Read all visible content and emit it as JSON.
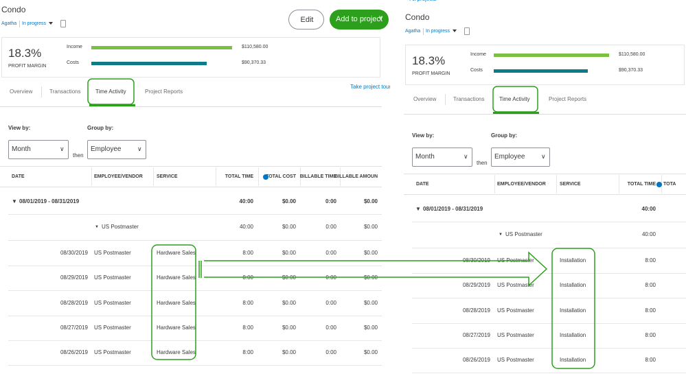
{
  "left": {
    "project": "Condo",
    "customer": "Agatha",
    "status": "In progress",
    "edit": "Edit",
    "add": "Add to project",
    "margin": "18.3%",
    "margin_label": "PROFIT MARGIN",
    "income_label": "Income",
    "income": 110580,
    "income_text": "$110,580.00",
    "costs_label": "Costs",
    "costs": 90370.33,
    "costs_text": "$90,370.33",
    "tabs": [
      "Overview",
      "Transactions",
      "Time Activity",
      "Project Reports"
    ],
    "tour": "Take project tour",
    "view_by": "View by:",
    "view_value": "Month",
    "then": "then",
    "group_by": "Group by:",
    "group_value": "Employee",
    "columns": [
      "DATE",
      "EMPLOYEE/VENDOR",
      "SERVICE",
      "TOTAL TIME",
      "TOTAL COST",
      "BILLABLE TIME",
      "BILLABLE AMOUN"
    ],
    "group_row": [
      "08/01/2019 - 08/31/2019",
      "40:00",
      "$0.00",
      "0:00",
      "$0.00"
    ],
    "sub_row": [
      "US Postmaster",
      "40:00",
      "$0.00",
      "0:00",
      "$0.00"
    ],
    "rows": [
      [
        "08/30/2019",
        "US Postmaster",
        "Hardware Sales",
        "8:00",
        "$0.00",
        "0:00",
        "$0.00"
      ],
      [
        "08/29/2019",
        "US Postmaster",
        "Hardware Sales",
        "8:00",
        "$0.00",
        "0:00",
        "$0.00"
      ],
      [
        "08/28/2019",
        "US Postmaster",
        "Hardware Sales",
        "8:00",
        "$0.00",
        "0:00",
        "$0.00"
      ],
      [
        "08/27/2019",
        "US Postmaster",
        "Hardware Sales",
        "8:00",
        "$0.00",
        "0:00",
        "$0.00"
      ],
      [
        "08/26/2019",
        "US Postmaster",
        "Hardware Sales",
        "8:00",
        "$0.00",
        "0:00",
        "$0.00"
      ]
    ]
  },
  "right": {
    "back": "< All projects",
    "project": "Condo",
    "customer": "Agatha",
    "status": "In progress",
    "margin": "18.3%",
    "margin_label": "PROFIT MARGIN",
    "income_label": "Income",
    "income": 110580,
    "income_text": "$110,580.00",
    "costs_label": "Costs",
    "costs": 90370.33,
    "costs_text": "$90,370.33",
    "tabs": [
      "Overview",
      "Transactions",
      "Time Activity",
      "Project Reports"
    ],
    "view_by": "View by:",
    "view_value": "Month",
    "then": "then",
    "group_by": "Group by:",
    "group_value": "Employee",
    "columns": [
      "DATE",
      "EMPLOYEE/VENDOR",
      "SERVICE",
      "TOTAL TIME",
      "TOTA"
    ],
    "group_row": [
      "08/01/2019 - 08/31/2019",
      "40:00"
    ],
    "sub_row": [
      "US Postmaster",
      "40:00"
    ],
    "rows": [
      [
        "08/30/2019",
        "US Postmaster",
        "Installation",
        "8:00"
      ],
      [
        "08/29/2019",
        "US Postmaster",
        "Installation",
        "8:00"
      ],
      [
        "08/28/2019",
        "US Postmaster",
        "Installation",
        "8:00"
      ],
      [
        "08/27/2019",
        "US Postmaster",
        "Installation",
        "8:00"
      ],
      [
        "08/26/2019",
        "US Postmaster",
        "Installation",
        "8:00"
      ]
    ]
  }
}
